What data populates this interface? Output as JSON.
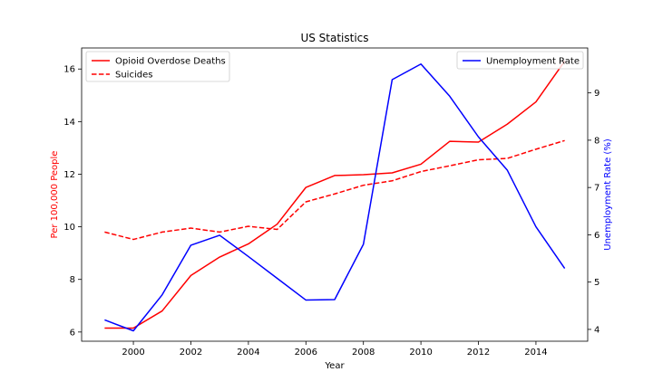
{
  "chart_data": {
    "type": "line",
    "title": "US Statistics",
    "xlabel": "Year",
    "ylabel_left": "Per 100,000 People",
    "ylabel_right": "Unemployment Rate (%)",
    "x": [
      1999,
      2000,
      2001,
      2002,
      2003,
      2004,
      2005,
      2006,
      2007,
      2008,
      2009,
      2010,
      2011,
      2012,
      2013,
      2014,
      2015
    ],
    "xlim": [
      1998.2,
      2015.8
    ],
    "ylim_left": [
      5.65,
      16.8
    ],
    "ylim_right": [
      3.75,
      9.95
    ],
    "xticks": [
      2000,
      2002,
      2004,
      2006,
      2008,
      2010,
      2012,
      2014
    ],
    "yticks_left": [
      6,
      8,
      10,
      12,
      14,
      16
    ],
    "yticks_right": [
      4,
      5,
      6,
      7,
      8,
      9
    ],
    "grid": false,
    "colors": {
      "left_axis": "#ff0000",
      "right_axis": "#0000ff",
      "spine": "#000000"
    },
    "series": [
      {
        "name": "Opioid Overdose Deaths",
        "axis": "left",
        "color": "#ff0000",
        "style": "solid",
        "values": [
          6.15,
          6.15,
          6.8,
          8.15,
          8.85,
          9.35,
          10.1,
          11.5,
          11.95,
          11.98,
          12.05,
          12.38,
          13.25,
          13.22,
          13.9,
          14.75,
          16.3
        ]
      },
      {
        "name": "Suicides",
        "axis": "left",
        "color": "#ff0000",
        "style": "dashed",
        "values": [
          9.8,
          9.52,
          9.8,
          9.95,
          9.8,
          10.02,
          9.9,
          10.95,
          11.25,
          11.58,
          11.75,
          12.1,
          12.32,
          12.55,
          12.6,
          12.95,
          13.28
        ]
      },
      {
        "name": "Unemployment Rate",
        "axis": "right",
        "color": "#0000ff",
        "style": "solid",
        "values": [
          4.2,
          3.97,
          4.73,
          5.78,
          5.99,
          5.54,
          5.08,
          4.62,
          4.63,
          5.8,
          9.28,
          9.61,
          8.93,
          8.07,
          7.37,
          6.17,
          5.29
        ]
      }
    ],
    "legend_left": {
      "placement": "top-left",
      "entries": [
        "Opioid Overdose Deaths",
        "Suicides"
      ]
    },
    "legend_right": {
      "placement": "top-right",
      "entries": [
        "Unemployment Rate"
      ]
    }
  }
}
